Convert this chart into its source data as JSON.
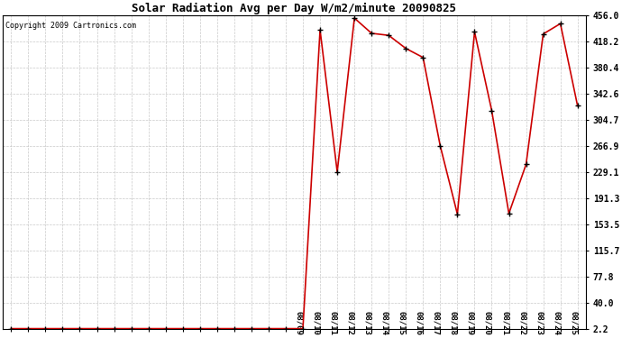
{
  "title": "Solar Radiation Avg per Day W/m2/minute 20090825",
  "copyright_text": "Copyright 2009 Cartronics.com",
  "x_labels_visible": [
    "08/09",
    "08/10",
    "08/11",
    "08/12",
    "08/13",
    "08/14",
    "08/15",
    "08/16",
    "08/17",
    "08/18",
    "08/19",
    "08/20",
    "08/21",
    "08/22",
    "08/23",
    "08/24",
    "08/25"
  ],
  "yticks": [
    2.2,
    40.0,
    77.8,
    115.7,
    153.5,
    191.3,
    229.1,
    266.9,
    304.7,
    342.6,
    380.4,
    418.2,
    456.0
  ],
  "line_color": "#cc0000",
  "marker_color": "#000000",
  "background_color": "#ffffff",
  "grid_color": "#bbbbbb",
  "data_y": [
    2.2,
    2.2,
    2.2,
    2.2,
    2.2,
    2.2,
    2.2,
    2.2,
    2.2,
    2.2,
    2.2,
    2.2,
    2.2,
    2.2,
    2.2,
    2.2,
    2.2,
    2.2,
    435.0,
    229.1,
    452.0,
    430.0,
    427.0,
    408.0,
    395.0,
    266.9,
    168.0,
    432.0,
    318.0,
    169.0,
    240.0,
    429.0,
    444.0,
    325.0
  ],
  "n_points": 34,
  "n_hidden": 17,
  "n_visible": 17,
  "ylim": [
    2.2,
    456.0
  ],
  "title_fontsize": 9,
  "ytick_fontsize": 7,
  "xtick_fontsize": 6.5,
  "copyright_fontsize": 6
}
